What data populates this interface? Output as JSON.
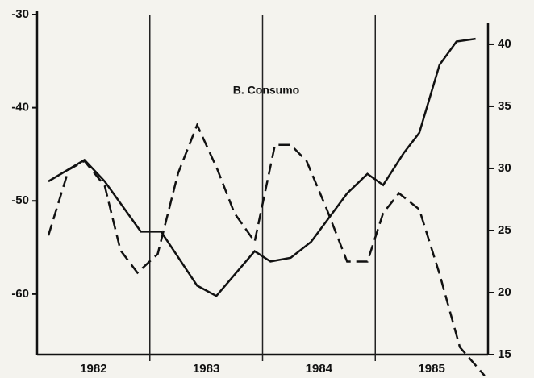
{
  "chart_data": {
    "type": "line",
    "annotation": "B. Consumo",
    "xlim": [
      1982,
      1986
    ],
    "xticks": [
      {
        "value": 1982.5,
        "label": "1982"
      },
      {
        "value": 1983.5,
        "label": "1983"
      },
      {
        "value": 1984.5,
        "label": "1984"
      },
      {
        "value": 1985.5,
        "label": "1985"
      }
    ],
    "year_dividers": [
      1983,
      1984,
      1985
    ],
    "ylim": [
      -66.5,
      -30
    ],
    "yticks": [
      -30,
      -40,
      -50,
      -60
    ],
    "y2lim": [
      15,
      42.4
    ],
    "y2ticks": [
      15,
      20,
      25,
      30,
      35,
      40
    ],
    "series": [
      {
        "color": "#111111",
        "dash": "solid",
        "x": [
          1982.1,
          1982.42,
          1982.6,
          1982.92,
          1983.1,
          1983.42,
          1983.59,
          1983.93,
          1984.07,
          1984.25,
          1984.43,
          1984.75,
          1984.93,
          1985.07,
          1985.25,
          1985.39,
          1985.57,
          1985.72,
          1985.89
        ],
        "values": [
          -47.9,
          -45.6,
          -47.9,
          -53.3,
          -53.3,
          -59.1,
          -60.2,
          -55.4,
          -56.5,
          -56.1,
          -54.4,
          -49.2,
          -47.1,
          -48.3,
          -44.9,
          -42.7,
          -35.4,
          -32.9,
          -32.6
        ]
      },
      {
        "color": "#111111",
        "dash": "dashed",
        "axis": "y2",
        "x": [
          1982.1,
          1982.28,
          1982.42,
          1982.6,
          1982.74,
          1982.89,
          1983.07,
          1983.25,
          1983.42,
          1983.6,
          1983.75,
          1983.93,
          1984.11,
          1984.25,
          1984.39,
          1984.57,
          1984.75,
          1984.93,
          1985.07,
          1985.21,
          1985.39,
          1985.57,
          1985.75,
          1985.97
        ],
        "values": [
          24.6,
          29.9,
          30.6,
          28.6,
          23.4,
          21.6,
          23.1,
          29.6,
          33.5,
          29.9,
          26.4,
          24.1,
          31.9,
          31.9,
          30.6,
          26.7,
          22.5,
          22.5,
          26.4,
          28.0,
          26.7,
          21.5,
          15.6,
          13.3
        ]
      }
    ]
  }
}
